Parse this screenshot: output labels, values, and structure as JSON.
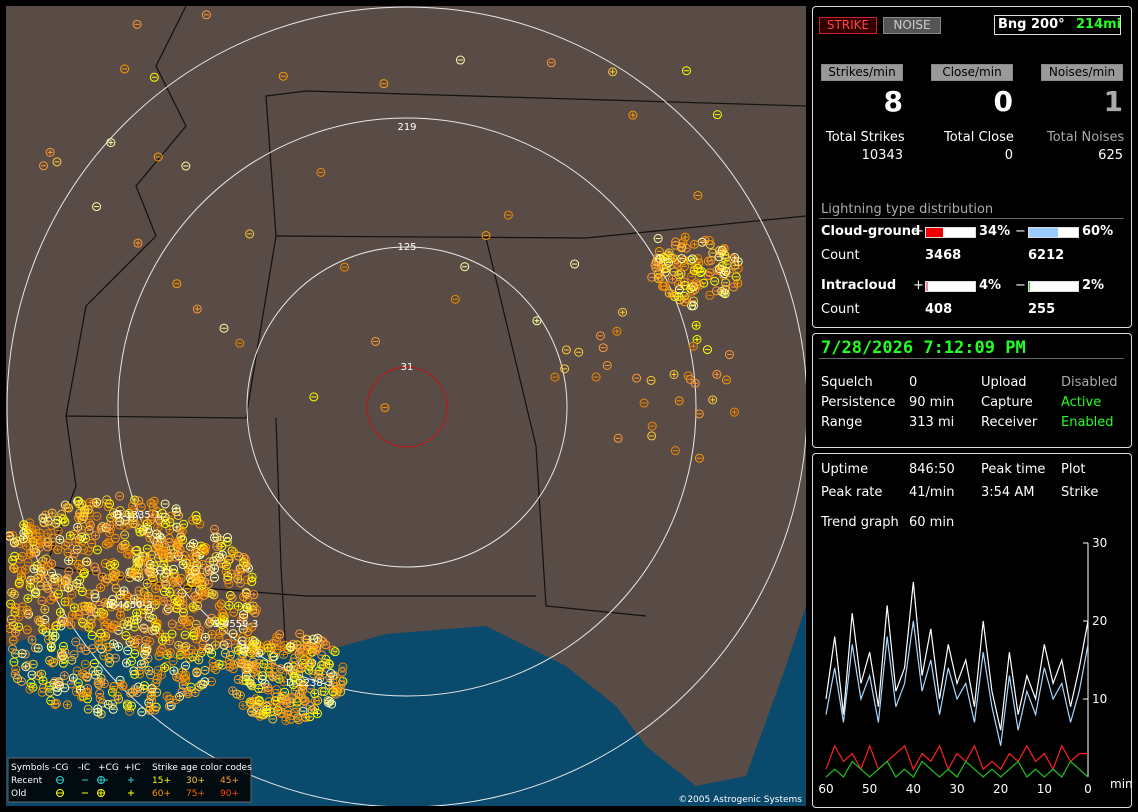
{
  "map": {
    "range_labels": [
      "219",
      "125",
      "31"
    ],
    "callouts": [
      "D-1335-1",
      "N-4650-3",
      "S-4559-3",
      "D-2238-3"
    ],
    "legend": {
      "symbols": "Symbols",
      "types": [
        "-CG",
        "-IC",
        "+CG",
        "+IC"
      ],
      "age_title": "Strike age color codes",
      "recent": "Recent",
      "old": "Old",
      "recent_ages": [
        "15+",
        "30+",
        "45+"
      ],
      "old_ages": [
        "60+",
        "75+",
        "90+"
      ]
    },
    "copyright": "©2005 Astrogenic Systems"
  },
  "status": {
    "buttons": [
      "STRIKE",
      "NOISE"
    ],
    "bearing": "Bng 200°",
    "distance": "214mi"
  },
  "rates": [
    {
      "label": "Strikes/min",
      "value": 8,
      "total_label": "Total Strikes",
      "total": 10343
    },
    {
      "label": "Close/min",
      "value": 0,
      "total_label": "Total Close",
      "total": 0
    },
    {
      "label": "Noises/min",
      "value": 1,
      "total_label": "Total Noises",
      "total": 625
    }
  ],
  "distribution": {
    "title": "Lightning type distribution",
    "count_label": "Count",
    "rows": [
      {
        "name": "Cloud-ground",
        "pos_sign": "+",
        "pos_pct": 34,
        "pos_label": "34%",
        "neg_sign": "−",
        "neg_pct": 60,
        "neg_label": "60%",
        "pos_count": 3468,
        "neg_count": 6212
      },
      {
        "name": "Intracloud",
        "pos_sign": "+",
        "pos_pct": 4,
        "pos_label": "4%",
        "neg_sign": "−",
        "neg_pct": 2,
        "neg_label": "2%",
        "pos_count": 408,
        "neg_count": 255
      }
    ]
  },
  "datetime": "7/28/2026 7:12:09 PM",
  "settings": [
    [
      "Squelch",
      "0",
      "Upload",
      "Disabled"
    ],
    [
      "Persistence",
      "90 min",
      "Capture",
      "Active"
    ],
    [
      "Range",
      "313 mi",
      "Receiver",
      "Enabled"
    ]
  ],
  "stats": [
    [
      "Uptime",
      "846:50",
      "Peak time",
      "Plot"
    ],
    [
      "Peak rate",
      "41/min",
      "3:54 AM",
      "Strike"
    ]
  ],
  "trend": {
    "label": "Trend graph",
    "period": "60 min",
    "x_unit": "min",
    "xlim": [
      60,
      0
    ],
    "ylim": [
      0,
      30
    ],
    "xticks": [
      60,
      50,
      40,
      30,
      20,
      10,
      0
    ],
    "yticks": [
      10,
      20,
      30
    ],
    "x": [
      60,
      58,
      56,
      54,
      52,
      50,
      48,
      46,
      44,
      42,
      40,
      38,
      36,
      34,
      32,
      30,
      28,
      26,
      24,
      22,
      20,
      18,
      16,
      14,
      12,
      10,
      8,
      6,
      4,
      2,
      0
    ],
    "series": [
      {
        "color": "#ffffff",
        "values": [
          10,
          18,
          8,
          21,
          12,
          16,
          9,
          22,
          11,
          14,
          25,
          13,
          19,
          10,
          17,
          12,
          15,
          9,
          20,
          11,
          6,
          16,
          8,
          13,
          10,
          17,
          12,
          15,
          9,
          14,
          20
        ]
      },
      {
        "color": "#a8d8ff",
        "values": [
          8,
          14,
          7,
          17,
          10,
          13,
          7,
          18,
          9,
          12,
          20,
          11,
          15,
          8,
          14,
          10,
          12,
          7,
          16,
          9,
          4,
          13,
          6,
          11,
          8,
          14,
          10,
          12,
          7,
          11,
          17
        ]
      },
      {
        "color": "#ff2020",
        "values": [
          1,
          4,
          2,
          3,
          1,
          4,
          1,
          2,
          3,
          4,
          1,
          3,
          2,
          4,
          1,
          3,
          2,
          4,
          1,
          2,
          1,
          3,
          2,
          4,
          2,
          3,
          1,
          4,
          2,
          3,
          3
        ]
      },
      {
        "color": "#20c020",
        "values": [
          0,
          1,
          0,
          2,
          1,
          0,
          1,
          2,
          0,
          1,
          0,
          2,
          1,
          0,
          1,
          0,
          2,
          1,
          0,
          1,
          0,
          1,
          2,
          0,
          1,
          0,
          1,
          0,
          2,
          1,
          0
        ]
      }
    ]
  }
}
